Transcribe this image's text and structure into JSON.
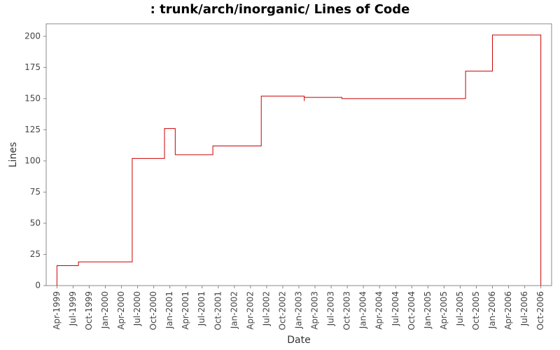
{
  "chart_data": {
    "type": "step",
    "title": ": trunk/arch/inorganic/ Lines of Code",
    "x_label": "Date",
    "y_label": "Lines",
    "x": [
      "1999-04",
      "1999-08",
      "2000-06",
      "2000-06",
      "2000-12",
      "2001-02",
      "2001-09",
      "2002-06",
      "2003-02",
      "2003-02",
      "2003-09",
      "2005-08",
      "2006-01",
      "2006-10"
    ],
    "series": [
      {
        "name": "Lines",
        "color": "#cc0000",
        "values": [
          16,
          19,
          20,
          102,
          126,
          105,
          112,
          152,
          148,
          151,
          150,
          172,
          201,
          0
        ]
      }
    ],
    "xlim": [
      "1999-02",
      "2006-12"
    ],
    "xticks": [
      {
        "value": "1999-04",
        "label": "Apr-1999"
      },
      {
        "value": "1999-07",
        "label": "Jul-1999"
      },
      {
        "value": "1999-10",
        "label": "Oct-1999"
      },
      {
        "value": "2000-01",
        "label": "Jan-2000"
      },
      {
        "value": "2000-04",
        "label": "Apr-2000"
      },
      {
        "value": "2000-07",
        "label": "Jul-2000"
      },
      {
        "value": "2000-10",
        "label": "Oct-2000"
      },
      {
        "value": "2001-01",
        "label": "Jan-2001"
      },
      {
        "value": "2001-04",
        "label": "Apr-2001"
      },
      {
        "value": "2001-07",
        "label": "Jul-2001"
      },
      {
        "value": "2001-10",
        "label": "Oct-2001"
      },
      {
        "value": "2002-01",
        "label": "Jan-2002"
      },
      {
        "value": "2002-04",
        "label": "Apr-2002"
      },
      {
        "value": "2002-07",
        "label": "Jul-2002"
      },
      {
        "value": "2002-10",
        "label": "Oct-2002"
      },
      {
        "value": "2003-01",
        "label": "Jan-2003"
      },
      {
        "value": "2003-04",
        "label": "Apr-2003"
      },
      {
        "value": "2003-07",
        "label": "Jul-2003"
      },
      {
        "value": "2003-10",
        "label": "Oct-2003"
      },
      {
        "value": "2004-01",
        "label": "Jan-2004"
      },
      {
        "value": "2004-04",
        "label": "Apr-2004"
      },
      {
        "value": "2004-07",
        "label": "Jul-2004"
      },
      {
        "value": "2004-10",
        "label": "Oct-2004"
      },
      {
        "value": "2005-01",
        "label": "Jan-2005"
      },
      {
        "value": "2005-04",
        "label": "Apr-2005"
      },
      {
        "value": "2005-07",
        "label": "Jul-2005"
      },
      {
        "value": "2005-10",
        "label": "Oct-2005"
      },
      {
        "value": "2006-01",
        "label": "Jan-2006"
      },
      {
        "value": "2006-04",
        "label": "Apr-2006"
      },
      {
        "value": "2006-07",
        "label": "Jul-2006"
      },
      {
        "value": "2006-10",
        "label": "Oct-2006"
      }
    ],
    "ylim": [
      0,
      210
    ],
    "yticks": [
      0,
      25,
      50,
      75,
      100,
      125,
      150,
      175,
      200
    ],
    "grid": false
  }
}
